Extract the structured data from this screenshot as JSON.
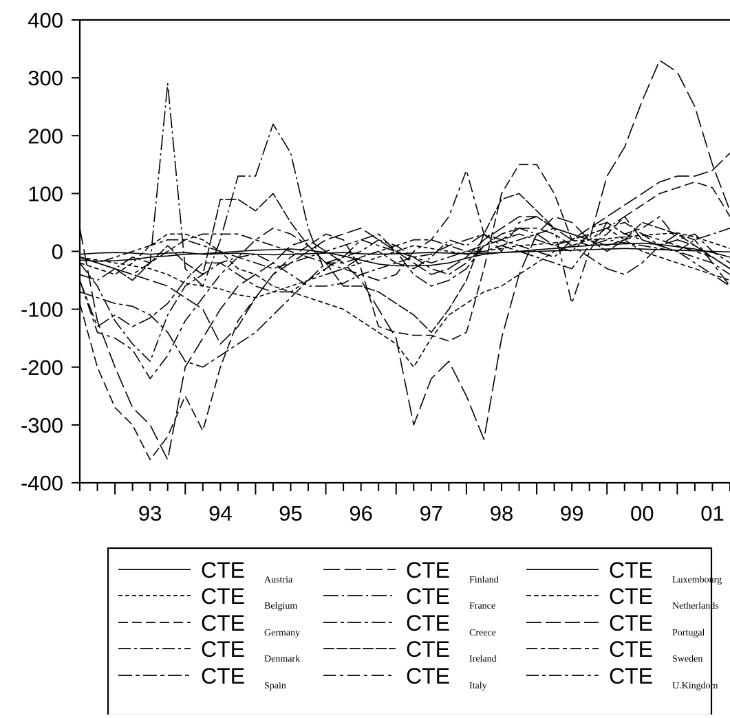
{
  "chart_data": {
    "type": "line",
    "title": "",
    "xlabel": "",
    "ylabel": "",
    "ylim": [
      -400,
      400
    ],
    "yticks": [
      -400,
      -300,
      -200,
      -100,
      0,
      100,
      200,
      300,
      400
    ],
    "ytick_labels": [
      "-400",
      "-300",
      "-200",
      "-100",
      "0",
      "100",
      "200",
      "300",
      "400"
    ],
    "xlim": [
      1992.5,
      2001.75
    ],
    "xtick_labels": [
      "93",
      "94",
      "95",
      "96",
      "97",
      "98",
      "99",
      "00",
      "01"
    ],
    "xtick_years": [
      1993,
      1994,
      1995,
      1996,
      1997,
      1998,
      1999,
      2000,
      2001
    ],
    "frequency": "quarterly",
    "grid": false,
    "legend_position": "bottom",
    "legend_prefix": "CTE",
    "series": [
      {
        "name": "Austria",
        "dash": "none",
        "start": 1992.5,
        "values": [
          -15,
          -17,
          -16,
          -14,
          -10,
          -8,
          -5,
          -4,
          -2,
          0,
          2,
          3,
          4,
          2,
          -2,
          -8,
          -15,
          -22,
          -25,
          -25,
          -24,
          -20,
          -12,
          -5,
          -2,
          0,
          3,
          5,
          8,
          10,
          12,
          13,
          14,
          12,
          8,
          4,
          -2,
          -10
        ]
      },
      {
        "name": "Belgium",
        "dash": "6,4",
        "start": 1992.5,
        "values": [
          -10,
          -15,
          -20,
          -25,
          -30,
          -40,
          -55,
          -60,
          -65,
          -75,
          -80,
          -70,
          -60,
          -50,
          -40,
          -30,
          -20,
          -10,
          0,
          10,
          5,
          0,
          -5,
          0,
          5,
          10,
          12,
          15,
          18,
          20,
          22,
          25,
          28,
          30,
          32,
          25,
          15,
          5
        ]
      },
      {
        "name": "Germany",
        "dash": "14,6",
        "start": 1992.5,
        "values": [
          -90,
          -200,
          -270,
          -300,
          -360,
          -320,
          -250,
          -310,
          -200,
          -120,
          -80,
          -40,
          -10,
          10,
          30,
          20,
          -30,
          -130,
          -140,
          -145,
          -145,
          -155,
          -140,
          -30,
          100,
          150,
          150,
          100,
          20,
          10,
          30,
          60,
          80,
          100,
          110,
          120,
          110,
          60
        ]
      },
      {
        "name": "Denmark",
        "dash": "18,5,4,5",
        "start": 1992.5,
        "values": [
          -20,
          -60,
          -120,
          -160,
          -190,
          -110,
          -60,
          -40,
          -20,
          -10,
          -5,
          -20,
          -40,
          -60,
          -60,
          -55,
          -40,
          -30,
          -20,
          -10,
          -5,
          10,
          20,
          30,
          10,
          0,
          -10,
          -20,
          -30,
          10,
          20,
          15,
          10,
          5,
          0,
          -10,
          -20,
          -40
        ]
      },
      {
        "name": "Spain",
        "dash": "20,5,6,5",
        "start": 1992.5,
        "values": [
          -50,
          -130,
          -110,
          -130,
          -115,
          -90,
          -50,
          -20,
          -20,
          -40,
          -60,
          -70,
          -70,
          -50,
          -30,
          -10,
          20,
          30,
          0,
          -40,
          -60,
          -50,
          -30,
          10,
          30,
          40,
          40,
          30,
          10,
          -10,
          -30,
          -40,
          -20,
          10,
          30,
          20,
          -20,
          -60
        ]
      },
      {
        "name": "Finland",
        "dash": "24,7",
        "start": 1992.5,
        "values": [
          40,
          -120,
          -200,
          -270,
          -300,
          -360,
          -200,
          -150,
          -100,
          -60,
          -40,
          -20,
          10,
          20,
          0,
          -20,
          -50,
          -100,
          -150,
          -300,
          -220,
          -190,
          -250,
          -325,
          -150,
          -40,
          30,
          60,
          50,
          20,
          130,
          180,
          260,
          330,
          310,
          250,
          150,
          70
        ]
      },
      {
        "name": "France",
        "dash": "22,5,3,5",
        "start": 1992.5,
        "values": [
          -40,
          -50,
          -30,
          -10,
          -20,
          290,
          -30,
          -60,
          20,
          130,
          130,
          220,
          170,
          40,
          -40,
          -30,
          -10,
          0,
          -20,
          -30,
          -10,
          20,
          10,
          30,
          20,
          40,
          30,
          10,
          0,
          30,
          40,
          60,
          20,
          10,
          0,
          20,
          30,
          40
        ]
      },
      {
        "name": "Creece",
        "dash": "20,5,5,5",
        "start": 1992.5,
        "values": [
          -70,
          -80,
          -90,
          -95,
          -110,
          -140,
          -190,
          -200,
          -180,
          -160,
          -140,
          -110,
          -80,
          -50,
          -20,
          -10,
          0,
          20,
          10,
          -10,
          -30,
          -40,
          -20,
          10,
          20,
          10,
          0,
          -10,
          20,
          40,
          50,
          30,
          20,
          10,
          20,
          30,
          0,
          -20
        ]
      },
      {
        "name": "Ireland",
        "dash": "16,3",
        "start": 1992.5,
        "values": [
          -10,
          -20,
          -30,
          -50,
          -20,
          10,
          -20,
          -40,
          90,
          90,
          70,
          100,
          50,
          10,
          -20,
          -60,
          -60,
          -70,
          -90,
          -110,
          -140,
          -100,
          -50,
          30,
          90,
          100,
          70,
          40,
          30,
          20,
          0,
          20,
          50,
          40,
          30,
          10,
          -10,
          -30
        ]
      },
      {
        "name": "Italy",
        "dash": "18,6,5,6",
        "start": 1992.5,
        "values": [
          -50,
          -140,
          -150,
          -170,
          -220,
          -180,
          -120,
          -80,
          -40,
          -10,
          20,
          40,
          30,
          10,
          -20,
          -30,
          -40,
          -50,
          -40,
          0,
          20,
          60,
          140,
          30,
          0,
          50,
          60,
          40,
          -90,
          0,
          50,
          30,
          40,
          60,
          20,
          10,
          -10,
          -30
        ]
      },
      {
        "name": "Luxembourg",
        "dash": "none",
        "start": 1992.5,
        "values": [
          -5,
          -3,
          -2,
          -3,
          -5,
          -3,
          -2,
          -5,
          -4,
          -3,
          -5,
          -6,
          -5,
          -4,
          -3,
          -2,
          -4,
          -5,
          -4,
          -3,
          -2,
          -3,
          -4,
          -3,
          -2,
          -1,
          0,
          1,
          2,
          3,
          4,
          5,
          4,
          3,
          2,
          1,
          0,
          -1
        ]
      },
      {
        "name": "Netherlands",
        "dash": "7,4",
        "start": 1992.5,
        "values": [
          -20,
          -30,
          -40,
          -20,
          10,
          30,
          30,
          20,
          0,
          -30,
          -40,
          -60,
          -70,
          -80,
          -90,
          -100,
          -120,
          -140,
          -160,
          -200,
          -150,
          -110,
          -90,
          -70,
          -60,
          -40,
          -20,
          0,
          10,
          20,
          40,
          20,
          0,
          -10,
          -20,
          -30,
          -40,
          -50
        ]
      },
      {
        "name": "Portugal",
        "dash": "22,6",
        "start": 1992.5,
        "values": [
          -10,
          -20,
          -30,
          -40,
          -50,
          -60,
          -80,
          -100,
          -160,
          -130,
          -80,
          -40,
          -20,
          0,
          20,
          30,
          40,
          20,
          0,
          -20,
          -40,
          -30,
          -10,
          20,
          40,
          60,
          60,
          40,
          20,
          40,
          60,
          80,
          100,
          120,
          130,
          130,
          140,
          170
        ]
      },
      {
        "name": "Sweden",
        "dash": "16,5,6,5",
        "start": 1992.5,
        "values": [
          -10,
          -20,
          -30,
          -40,
          -20,
          0,
          20,
          30,
          30,
          30,
          20,
          10,
          0,
          -10,
          -20,
          -20,
          -10,
          0,
          10,
          20,
          20,
          10,
          0,
          0,
          10,
          20,
          30,
          40,
          30,
          20,
          10,
          20,
          30,
          20,
          10,
          0,
          -10,
          -30
        ]
      },
      {
        "name": "U.Kingdom",
        "dash": "18,5,5,5",
        "start": 1992.5,
        "values": [
          -10,
          -20,
          -10,
          0,
          10,
          20,
          20,
          10,
          0,
          -10,
          -20,
          -30,
          -20,
          -10,
          0,
          10,
          20,
          10,
          0,
          -10,
          -20,
          -10,
          0,
          10,
          20,
          30,
          20,
          10,
          20,
          30,
          40,
          50,
          30,
          10,
          0,
          -20,
          -40,
          -60
        ]
      }
    ]
  }
}
